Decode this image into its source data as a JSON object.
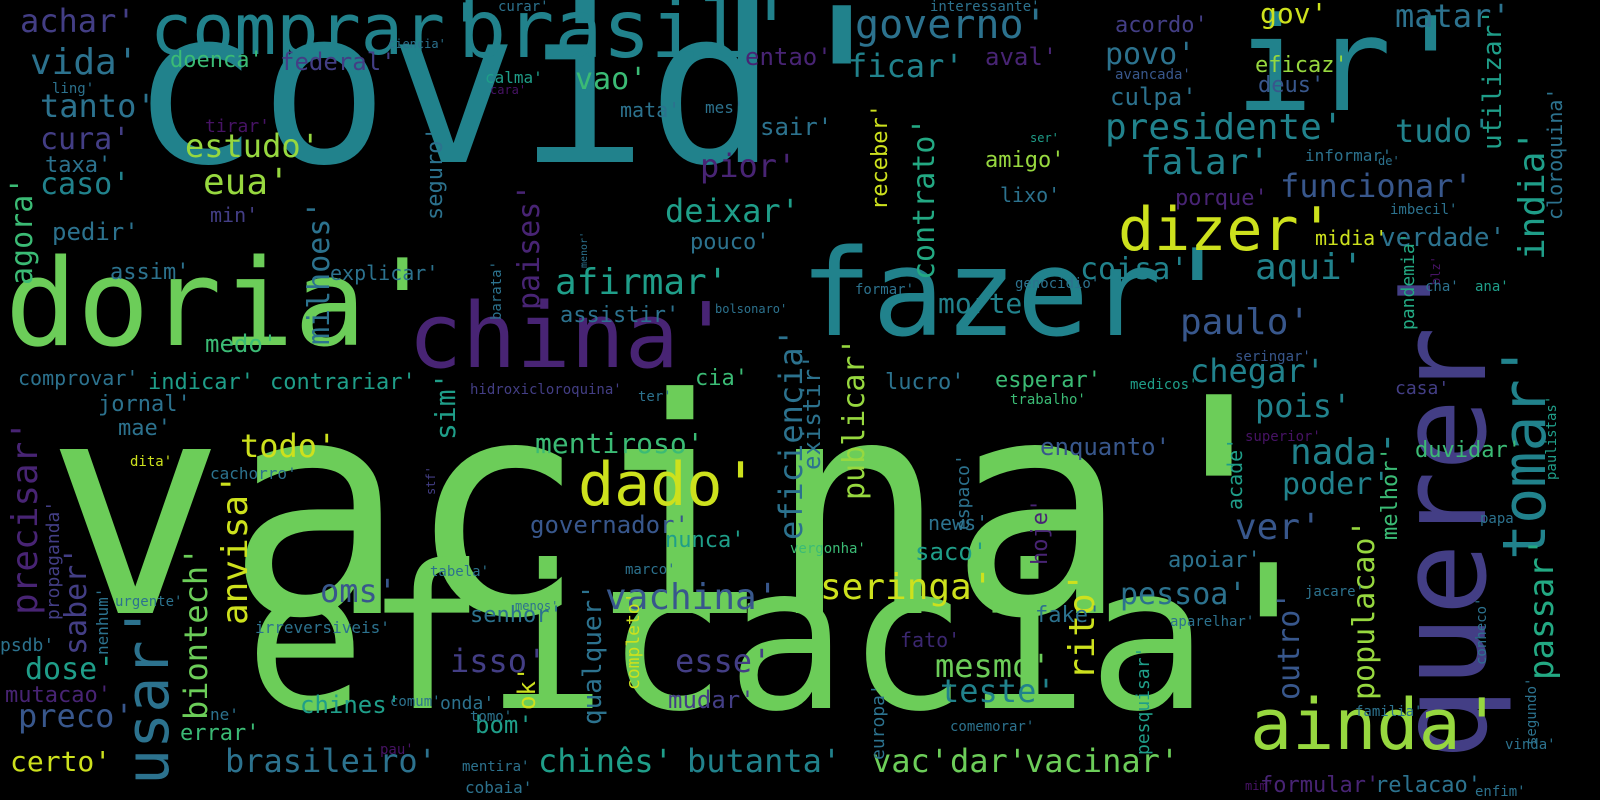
{
  "palette": {
    "green": "#6ccd59",
    "teal": "#21828c",
    "lightgreen": "#97d83f",
    "yellow": "#cde11d",
    "purple": "#482474",
    "indigo": "#433e85",
    "blue": "#2c728e",
    "slate": "#38578c",
    "mint": "#3bbb75",
    "sea": "#23a983",
    "cyan": "#1f9e89",
    "violet": "#471365",
    "dim": "#3b2770"
  },
  "words": [
    {
      "text": "vacina'",
      "c": "green"
    },
    {
      "text": "covid'",
      "c": "teal"
    },
    {
      "text": "eficacia'",
      "c": "green"
    },
    {
      "text": "ir'",
      "c": "teal"
    },
    {
      "text": "querer'",
      "c": "indigo"
    },
    {
      "text": "doria'",
      "c": "green"
    },
    {
      "text": "fazer'",
      "c": "teal"
    },
    {
      "text": "china'",
      "c": "purple"
    },
    {
      "text": "brasil'",
      "c": "teal"
    },
    {
      "text": "comprar'",
      "c": "teal"
    },
    {
      "text": "tomar'",
      "c": "teal"
    },
    {
      "text": "ainda'",
      "c": "lightgreen"
    },
    {
      "text": "dizer'",
      "c": "yellow"
    },
    {
      "text": "dado'",
      "c": "yellow"
    },
    {
      "text": "usar'",
      "c": "blue"
    },
    {
      "text": "governo'",
      "c": "blue"
    },
    {
      "text": "presidente'",
      "c": "teal"
    },
    {
      "text": "afirmar'",
      "c": "cyan"
    },
    {
      "text": "vachina'",
      "c": "slate"
    },
    {
      "text": "seringa'",
      "c": "yellow"
    },
    {
      "text": "paulo'",
      "c": "slate"
    },
    {
      "text": "aqui'",
      "c": "teal"
    },
    {
      "text": "falar'",
      "c": "teal"
    },
    {
      "text": "funcionar'",
      "c": "slate"
    },
    {
      "text": "india'",
      "c": "cyan"
    },
    {
      "text": "passar'",
      "c": "sea"
    },
    {
      "text": "deixar'",
      "c": "cyan"
    },
    {
      "text": "eua'",
      "c": "lightgreen"
    },
    {
      "text": "estudo'",
      "c": "lightgreen"
    },
    {
      "text": "ficar'",
      "c": "teal"
    },
    {
      "text": "vida'",
      "c": "blue"
    },
    {
      "text": "tanto'",
      "c": "blue"
    },
    {
      "text": "achar'",
      "c": "indigo"
    },
    {
      "text": "cura'",
      "c": "indigo"
    },
    {
      "text": "caso'",
      "c": "teal"
    },
    {
      "text": "agora'",
      "c": "mint"
    },
    {
      "text": "precisar'",
      "c": "purple"
    },
    {
      "text": "saber'",
      "c": "indigo"
    },
    {
      "text": "dose'",
      "c": "cyan"
    },
    {
      "text": "preco'",
      "c": "slate"
    },
    {
      "text": "certo'",
      "c": "yellow"
    },
    {
      "text": "mutacao'",
      "c": "purple"
    },
    {
      "text": "anvisa'",
      "c": "yellow"
    },
    {
      "text": "biontech'",
      "c": "green"
    },
    {
      "text": "todo'",
      "c": "yellow"
    },
    {
      "text": "milhoes'",
      "c": "blue"
    },
    {
      "text": "paises'",
      "c": "purple"
    },
    {
      "text": "brasileiro'",
      "c": "blue"
    },
    {
      "text": "chinês'",
      "c": "cyan"
    },
    {
      "text": "butanta'",
      "c": "teal"
    },
    {
      "text": "vac'",
      "c": "green"
    },
    {
      "text": "dar'",
      "c": "green"
    },
    {
      "text": "vacinar'",
      "c": "green"
    },
    {
      "text": "mesmo'",
      "c": "green"
    },
    {
      "text": "teste'",
      "c": "teal"
    },
    {
      "text": "rito'",
      "c": "yellow"
    },
    {
      "text": "pessoa'",
      "c": "blue"
    },
    {
      "text": "outro'",
      "c": "slate"
    },
    {
      "text": "populacao'",
      "c": "lightgreen"
    },
    {
      "text": "poder'",
      "c": "teal"
    },
    {
      "text": "nada'",
      "c": "teal"
    },
    {
      "text": "ver'",
      "c": "slate"
    },
    {
      "text": "pois'",
      "c": "teal"
    },
    {
      "text": "chegar'",
      "c": "teal"
    },
    {
      "text": "coisa'",
      "c": "teal"
    },
    {
      "text": "morte'",
      "c": "teal"
    },
    {
      "text": "contrato'",
      "c": "sea"
    },
    {
      "text": "eficiencia'",
      "c": "blue"
    },
    {
      "text": "publicar'",
      "c": "lightgreen"
    },
    {
      "text": "existir'",
      "c": "blue"
    },
    {
      "text": "isso'",
      "c": "indigo"
    },
    {
      "text": "esse'",
      "c": "indigo"
    },
    {
      "text": "mentiroso'",
      "c": "mint"
    },
    {
      "text": "qualquer'",
      "c": "blue"
    },
    {
      "text": "oms'",
      "c": "slate"
    },
    {
      "text": "sim'",
      "c": "cyan"
    },
    {
      "text": "pior'",
      "c": "purple"
    },
    {
      "text": "sair'",
      "c": "blue"
    },
    {
      "text": "vao'",
      "c": "mint"
    },
    {
      "text": "povo'",
      "c": "blue"
    },
    {
      "text": "culpa'",
      "c": "blue"
    },
    {
      "text": "tudo'",
      "c": "teal"
    },
    {
      "text": "matar'",
      "c": "blue"
    },
    {
      "text": "gov'",
      "c": "yellow"
    },
    {
      "text": "eficaz'",
      "c": "lightgreen"
    },
    {
      "text": "deus'",
      "c": "slate"
    },
    {
      "text": "acordo'",
      "c": "indigo"
    },
    {
      "text": "utilizar'",
      "c": "cyan"
    },
    {
      "text": "cloroquina'",
      "c": "blue"
    },
    {
      "text": "verdade'",
      "c": "blue"
    },
    {
      "text": "federal'",
      "c": "indigo"
    },
    {
      "text": "doenca'",
      "c": "mint"
    },
    {
      "text": "entao'",
      "c": "purple"
    },
    {
      "text": "aval'",
      "c": "purple"
    },
    {
      "text": "taxa'",
      "c": "blue"
    },
    {
      "text": "pedir'",
      "c": "blue"
    },
    {
      "text": "min'",
      "c": "indigo"
    },
    {
      "text": "assim'",
      "c": "blue"
    },
    {
      "text": "explicar'",
      "c": "blue"
    },
    {
      "text": "assistir'",
      "c": "blue"
    },
    {
      "text": "medo'",
      "c": "mint"
    },
    {
      "text": "pouco'",
      "c": "blue"
    },
    {
      "text": "indicar'",
      "c": "cyan"
    },
    {
      "text": "contrariar'",
      "c": "cyan"
    },
    {
      "text": "comprovar'",
      "c": "blue"
    },
    {
      "text": "jornal'",
      "c": "blue"
    },
    {
      "text": "mae'",
      "c": "blue"
    },
    {
      "text": "cia'",
      "c": "mint"
    },
    {
      "text": "lucro'",
      "c": "blue"
    },
    {
      "text": "esperar'",
      "c": "mint"
    },
    {
      "text": "enquanto'",
      "c": "slate"
    },
    {
      "text": "governador'",
      "c": "slate"
    },
    {
      "text": "nunca'",
      "c": "cyan"
    },
    {
      "text": "senhor'",
      "c": "blue"
    },
    {
      "text": "chines'",
      "c": "cyan"
    },
    {
      "text": "bom'",
      "c": "cyan"
    },
    {
      "text": "mudar'",
      "c": "indigo"
    },
    {
      "text": "errar'",
      "c": "mint"
    },
    {
      "text": "ok'",
      "c": "yellow"
    },
    {
      "text": "saco'",
      "c": "cyan"
    },
    {
      "text": "fake'",
      "c": "blue"
    },
    {
      "text": "hoje'",
      "c": "purple"
    },
    {
      "text": "news'",
      "c": "blue"
    },
    {
      "text": "apoiar'",
      "c": "blue"
    },
    {
      "text": "melhor'",
      "c": "mint"
    },
    {
      "text": "duvidar'",
      "c": "mint"
    },
    {
      "text": "acade'",
      "c": "cyan"
    },
    {
      "text": "amigo'",
      "c": "lightgreen"
    },
    {
      "text": "lixo'",
      "c": "blue"
    },
    {
      "text": "receber'",
      "c": "yellow"
    },
    {
      "text": "porque'",
      "c": "purple"
    },
    {
      "text": "midia'",
      "c": "yellow"
    },
    {
      "text": "pandemia'",
      "c": "sea"
    },
    {
      "text": "seguro'",
      "c": "blue"
    },
    {
      "text": "mata'",
      "c": "blue"
    },
    {
      "text": "mes'",
      "c": "blue"
    },
    {
      "text": "calma'",
      "c": "cyan"
    },
    {
      "text": "curar'",
      "c": "blue"
    },
    {
      "text": "interessante'",
      "c": "blue"
    },
    {
      "text": "ciencia'",
      "c": "blue"
    },
    {
      "text": "ling'",
      "c": "blue"
    },
    {
      "text": "cara'",
      "c": "violet"
    },
    {
      "text": "tirar'",
      "c": "violet"
    },
    {
      "text": "avancada'",
      "c": "slate"
    },
    {
      "text": "ser'",
      "c": "cyan"
    },
    {
      "text": "informar'",
      "c": "blue"
    },
    {
      "text": "de'",
      "c": "blue"
    },
    {
      "text": "imbecil'",
      "c": "blue"
    },
    {
      "text": "blz'",
      "c": "violet"
    },
    {
      "text": "cha'",
      "c": "blue"
    },
    {
      "text": "ana'",
      "c": "cyan"
    },
    {
      "text": "casa'",
      "c": "indigo"
    },
    {
      "text": "medicos'",
      "c": "cyan"
    },
    {
      "text": "seringar'",
      "c": "slate"
    },
    {
      "text": "trabalho'",
      "c": "mint"
    },
    {
      "text": "superior'",
      "c": "violet"
    },
    {
      "text": "paulistas'",
      "c": "cyan"
    },
    {
      "text": "papa'",
      "c": "blue"
    },
    {
      "text": "conheco'",
      "c": "blue"
    },
    {
      "text": "jacare'",
      "c": "blue"
    },
    {
      "text": "segundo'",
      "c": "blue"
    },
    {
      "text": "vinda'",
      "c": "blue"
    },
    {
      "text": "enfim'",
      "c": "blue"
    },
    {
      "text": "familia'",
      "c": "blue"
    },
    {
      "text": "relacao'",
      "c": "blue"
    },
    {
      "text": "formular'",
      "c": "purple"
    },
    {
      "text": "mim'",
      "c": "violet"
    },
    {
      "text": "aparelhar'",
      "c": "blue"
    },
    {
      "text": "pesquisar'",
      "c": "cyan"
    },
    {
      "text": "comemorar'",
      "c": "blue"
    },
    {
      "text": "europa'",
      "c": "blue"
    },
    {
      "text": "fato'",
      "c": "dim"
    },
    {
      "text": "espaco'",
      "c": "blue"
    },
    {
      "text": "vergonha'",
      "c": "mint"
    },
    {
      "text": "completo'",
      "c": "yellow"
    },
    {
      "text": "marco'",
      "c": "blue"
    },
    {
      "text": "tabela'",
      "c": "blue"
    },
    {
      "text": "menos'",
      "c": "blue"
    },
    {
      "text": "mentira'",
      "c": "blue"
    },
    {
      "text": "cobaia'",
      "c": "blue"
    },
    {
      "text": "tomo'",
      "c": "blue"
    },
    {
      "text": "onda'",
      "c": "blue"
    },
    {
      "text": "comum'",
      "c": "blue"
    },
    {
      "text": "pau'",
      "c": "violet"
    },
    {
      "text": "ne'",
      "c": "blue"
    },
    {
      "text": "irreversiveis'",
      "c": "blue"
    },
    {
      "text": "urgente'",
      "c": "blue"
    },
    {
      "text": "nenhum'",
      "c": "blue"
    },
    {
      "text": "propaganda'",
      "c": "indigo"
    },
    {
      "text": "psdb'",
      "c": "blue"
    },
    {
      "text": "stf'",
      "c": "indigo"
    },
    {
      "text": "cachorro'",
      "c": "blue"
    },
    {
      "text": "dita'",
      "c": "yellow"
    },
    {
      "text": "ter'",
      "c": "blue"
    },
    {
      "text": "hidroxicloroquina'",
      "c": "indigo"
    },
    {
      "text": "bolsonaro'",
      "c": "blue"
    },
    {
      "text": "barata'",
      "c": "blue"
    },
    {
      "text": "menor'",
      "c": "blue"
    },
    {
      "text": "genocidio'",
      "c": "blue"
    },
    {
      "text": "formar'",
      "c": "blue"
    }
  ]
}
